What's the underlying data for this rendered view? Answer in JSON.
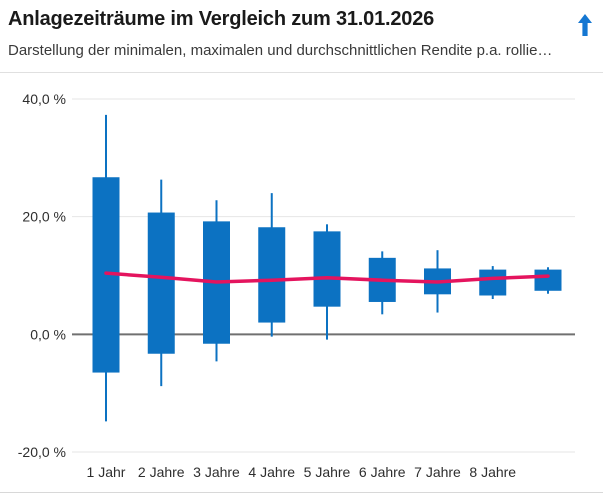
{
  "widget": {
    "title": "Anlagezeiträume im Vergleich zum 31.01.2026",
    "subtitle": "Darstellung der minimalen, maximalen und durchschnittlichen Rendite p.a. rollie…",
    "icon": "arrow-up-icon"
  },
  "colors": {
    "bar_blue": "#0c72c2",
    "average_line_pink": "#e4145e",
    "arrow_blue": "#1577d2",
    "gridline": "#e6e6e6",
    "zero_line": "#707070",
    "title_text": "#1a1a1a",
    "subtitle_text": "#3a3a3a",
    "axis_text": "#2e2e2e",
    "separator": "#e0e0e0"
  },
  "chart_data": {
    "type": "boxplot",
    "title": "Anlagezeiträume im Vergleich zum 31.01.2026",
    "subtitle": "Darstellung der minimalen, maximalen und durchschnittlichen Rendite p.a. rollie…",
    "xlabel": "",
    "ylabel": "",
    "grid": true,
    "legend": "none",
    "ylim": [
      -22,
      43.5
    ],
    "y_ticks": [
      {
        "label": "40,0 %",
        "value": 40
      },
      {
        "label": "20,0 %",
        "value": 20
      },
      {
        "label": "0,0 %",
        "value": 0
      },
      {
        "label": "-20,0 %",
        "value": -20
      }
    ],
    "categories": [
      "1 Jahr",
      "2 Jahre",
      "3 Jahre",
      "4 Jahre",
      "5 Jahre",
      "6 Jahre",
      "7 Jahre",
      "8 Jahre",
      ""
    ],
    "boxes": [
      {
        "label": "1 Jahr",
        "max": 37.3,
        "box_top": 26.7,
        "box_bottom": -6.5,
        "min": -14.8
      },
      {
        "label": "2 Jahre",
        "max": 26.3,
        "box_top": 20.7,
        "box_bottom": -3.3,
        "min": -8.8
      },
      {
        "label": "3 Jahre",
        "max": 22.8,
        "box_top": 19.2,
        "box_bottom": -1.6,
        "min": -4.6
      },
      {
        "label": "4 Jahre",
        "max": 24.0,
        "box_top": 18.2,
        "box_bottom": 2.0,
        "min": -0.4
      },
      {
        "label": "5 Jahre",
        "max": 18.7,
        "box_top": 17.5,
        "box_bottom": 4.7,
        "min": -0.9
      },
      {
        "label": "6 Jahre",
        "max": 14.1,
        "box_top": 13.0,
        "box_bottom": 5.5,
        "min": 3.4
      },
      {
        "label": "7 Jahre",
        "max": 14.3,
        "box_top": 11.2,
        "box_bottom": 6.8,
        "min": 3.7
      },
      {
        "label": "8 Jahre",
        "max": 11.6,
        "box_top": 11.0,
        "box_bottom": 6.6,
        "min": 6.0
      },
      {
        "label": "",
        "max": 11.4,
        "box_top": 11.0,
        "box_bottom": 7.4,
        "min": 6.9
      }
    ],
    "average_line": {
      "values": [
        10.4,
        9.7,
        8.9,
        9.2,
        9.6,
        9.2,
        8.9,
        9.5,
        9.9
      ]
    }
  }
}
